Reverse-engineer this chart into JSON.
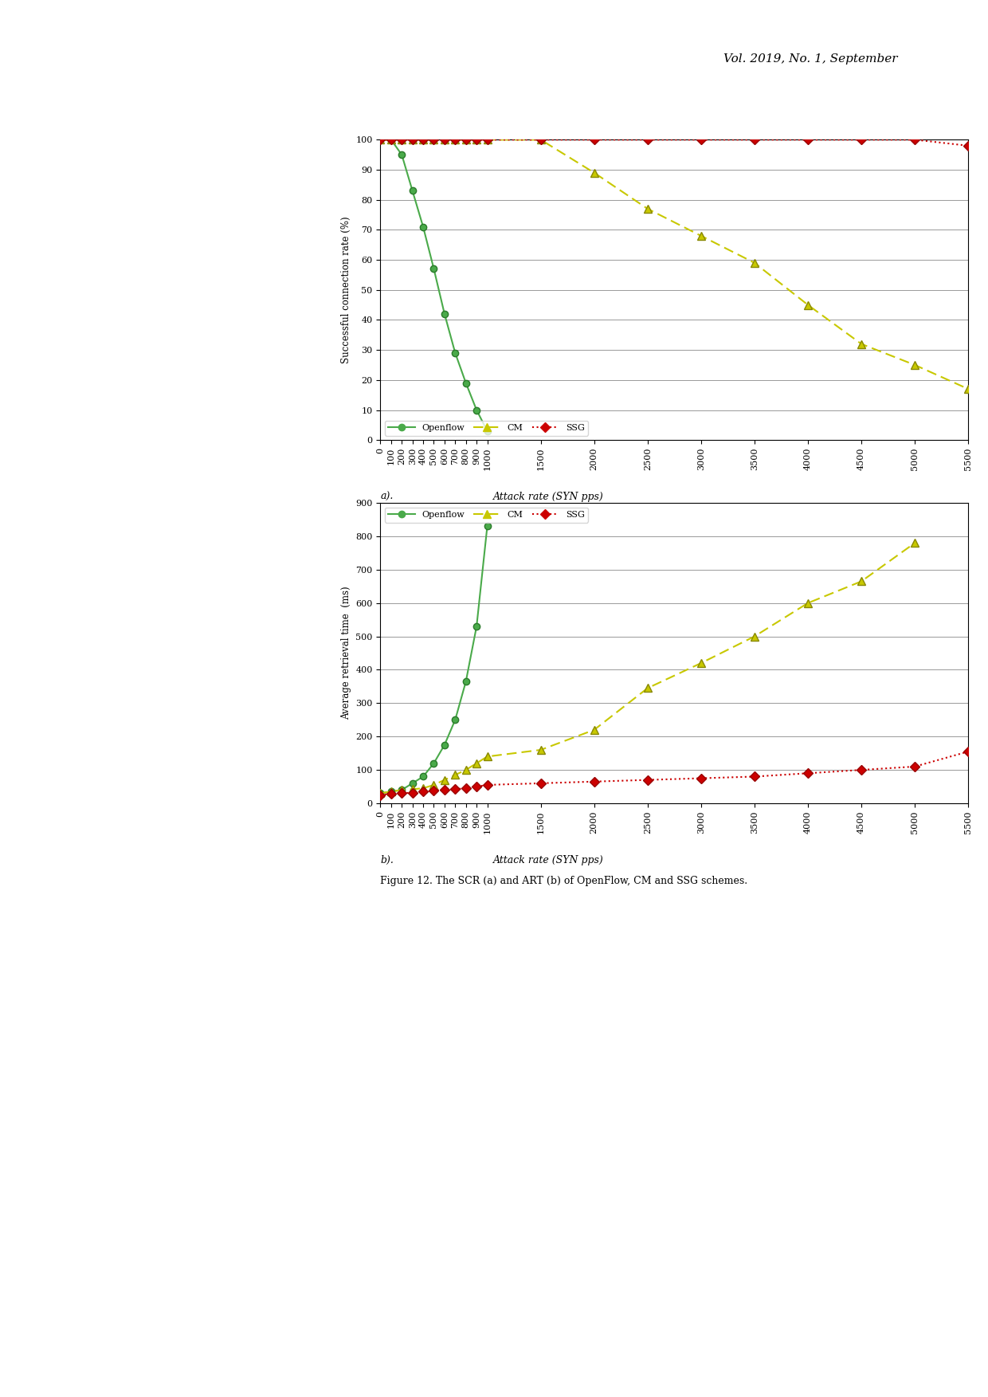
{
  "attack_rates": [
    0,
    100,
    200,
    300,
    400,
    500,
    600,
    700,
    800,
    900,
    1000,
    1500,
    2000,
    2500,
    3000,
    3500,
    4000,
    4500,
    5000,
    5500
  ],
  "scr_openflow": [
    100,
    100,
    95,
    83,
    71,
    57,
    42,
    29,
    19,
    10,
    3,
    null,
    null,
    null,
    null,
    null,
    null,
    null,
    null,
    null
  ],
  "scr_cm": [
    100,
    100,
    100,
    100,
    100,
    100,
    100,
    100,
    100,
    100,
    100,
    100,
    89,
    77,
    68,
    59,
    45,
    32,
    25,
    17
  ],
  "scr_ssg": [
    100,
    100,
    100,
    100,
    100,
    100,
    100,
    100,
    100,
    100,
    100,
    100,
    100,
    100,
    100,
    100,
    100,
    100,
    100,
    98
  ],
  "art_openflow": [
    30,
    35,
    40,
    60,
    80,
    120,
    175,
    250,
    365,
    530,
    830,
    null,
    null,
    null,
    null,
    null,
    null,
    null,
    null,
    null
  ],
  "art_cm": [
    30,
    35,
    40,
    42,
    45,
    55,
    70,
    85,
    100,
    120,
    140,
    160,
    220,
    345,
    420,
    500,
    600,
    665,
    780,
    null
  ],
  "art_ssg": [
    25,
    28,
    30,
    32,
    35,
    38,
    40,
    42,
    45,
    50,
    55,
    60,
    65,
    70,
    75,
    80,
    90,
    100,
    110,
    155
  ],
  "openflow_color": "#4aaa4a",
  "cm_color": "#c8c800",
  "ssg_color": "#cc0000",
  "ylabel_a": "Successful connection rate (%)",
  "ylabel_b": "Average retrieval time  (ms)",
  "xlabel": "Attack rate (SYN pps)",
  "label_a": "a).",
  "label_b": "b).",
  "ylim_a": [
    0,
    100
  ],
  "ylim_b": [
    0,
    900
  ],
  "yticks_a": [
    0,
    10,
    20,
    30,
    40,
    50,
    60,
    70,
    80,
    90,
    100
  ],
  "yticks_b": [
    0,
    100,
    200,
    300,
    400,
    500,
    600,
    700,
    800,
    900
  ],
  "header": "Vol. 2019, No. 1, September",
  "fig_caption": "Figure 12. The SCR (a) and ART (b) of OpenFlow, CM and SSG schemes.",
  "xtick_vals": [
    0,
    100,
    200,
    300,
    400,
    500,
    600,
    700,
    800,
    900,
    1000,
    1500,
    2000,
    2500,
    3000,
    3500,
    4000,
    4500,
    5000,
    5500
  ]
}
